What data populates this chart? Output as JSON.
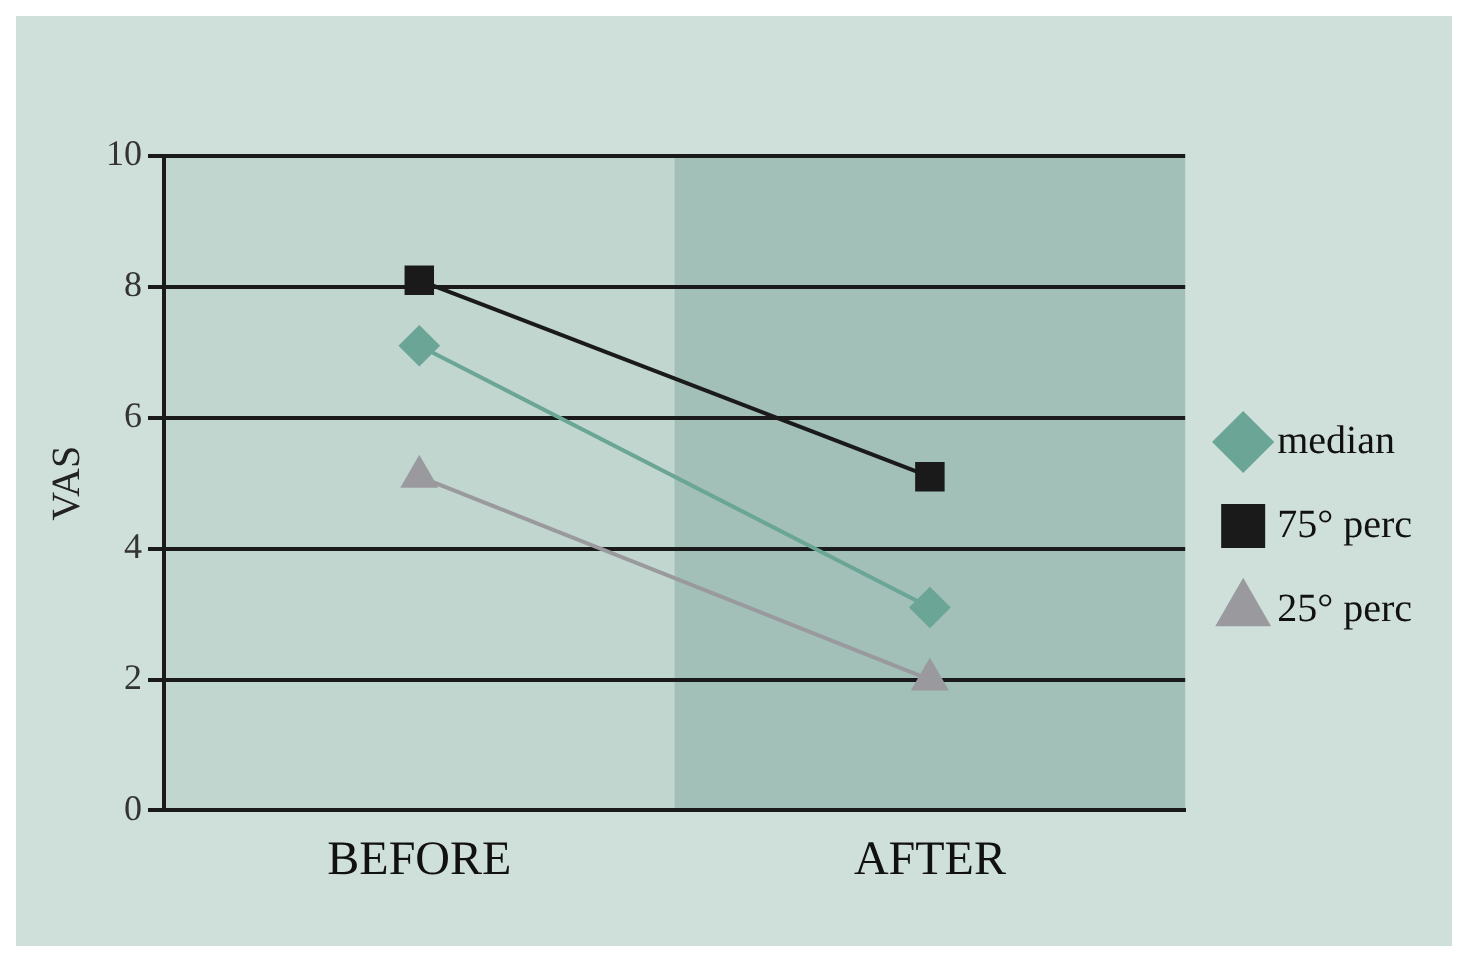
{
  "chart_data": {
    "type": "line",
    "ylabel": "VAS",
    "categories": [
      "BEFORE",
      "AFTER"
    ],
    "series": [
      {
        "name": "median",
        "color": "#6aa596",
        "marker": "diamond",
        "values": [
          7.1,
          3.1
        ]
      },
      {
        "name": "75° perc",
        "color": "#1a1a1a",
        "marker": "square",
        "values": [
          8.1,
          5.1
        ]
      },
      {
        "name": "25° perc",
        "color": "#9a9a9e",
        "marker": "triangle",
        "values": [
          5.1,
          2.0
        ]
      }
    ],
    "ylim": [
      0,
      10
    ],
    "yticks": [
      0,
      2,
      4,
      6,
      8,
      10
    ],
    "grid": "y",
    "legend": "right",
    "bands": [
      {
        "axis": "x",
        "from": "AFTER",
        "to": "AFTER",
        "color": "#a2bfb8"
      }
    ]
  }
}
